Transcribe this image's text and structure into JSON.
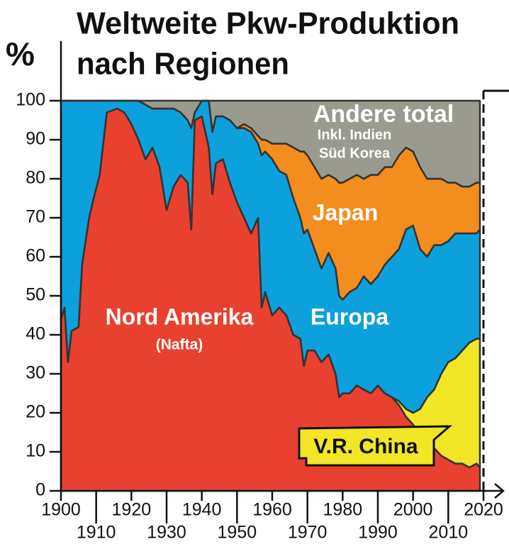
{
  "chart_data": {
    "type": "stacked_area",
    "title": [
      "Weltweite Pkw-Produktion",
      "nach Regionen"
    ],
    "y_label": "%",
    "x": [
      1900,
      1901,
      1902,
      1903,
      1905,
      1906,
      1908,
      1909,
      1911,
      1913,
      1916,
      1918,
      1920,
      1922,
      1924,
      1926,
      1928,
      1930,
      1932,
      1934,
      1936,
      1937,
      1938,
      1940,
      1942,
      1943,
      1944,
      1946,
      1948,
      1950,
      1952,
      1954,
      1956,
      1957,
      1958,
      1960,
      1962,
      1964,
      1966,
      1968,
      1969,
      1970,
      1972,
      1974,
      1976,
      1978,
      1979,
      1980,
      1982,
      1984,
      1986,
      1988,
      1990,
      1992,
      1994,
      1996,
      1998,
      2000,
      2002,
      2004,
      2006,
      2008,
      2010,
      2012,
      2014,
      2016,
      2018,
      2019
    ],
    "series": [
      {
        "name": "Nord Amerika",
        "color": "#e8412f",
        "values": [
          44,
          47,
          33,
          41,
          42,
          58,
          70,
          74,
          81,
          97,
          98,
          97,
          94,
          90,
          85,
          88,
          83,
          72,
          78,
          81,
          79,
          67,
          95,
          96,
          88,
          76,
          84,
          85,
          79,
          74,
          70,
          66,
          70,
          47,
          51,
          45,
          47,
          45,
          40,
          39,
          32,
          36,
          36,
          33,
          35,
          30,
          24,
          25,
          25,
          27,
          26,
          25,
          27,
          25,
          24,
          22,
          19,
          17,
          14,
          12,
          11,
          9,
          8,
          7,
          7,
          6,
          7,
          6
        ]
      },
      {
        "name": "V.R. China",
        "color": "#f2e627",
        "values": [
          0,
          0,
          0,
          0,
          0,
          0,
          0,
          0,
          0,
          0,
          0,
          0,
          0,
          0,
          0,
          0,
          0,
          0,
          0,
          0,
          0,
          0,
          0,
          0,
          0,
          0,
          0,
          0,
          0,
          0,
          0,
          0,
          0,
          0,
          0,
          0,
          0,
          0,
          0,
          0,
          0,
          0,
          0,
          0,
          0,
          0,
          0,
          0,
          0,
          0,
          0,
          0,
          0,
          0,
          0,
          1,
          2,
          3,
          7,
          12,
          15,
          21,
          25,
          27,
          29,
          32,
          32,
          33
        ]
      },
      {
        "name": "Europa",
        "color": "#0ca0dc",
        "values": [
          56,
          53,
          67,
          59,
          58,
          42,
          30,
          26,
          19,
          3,
          2,
          3,
          6,
          10,
          14,
          10,
          15,
          26,
          20,
          16,
          16,
          26,
          2,
          4,
          12,
          16,
          12,
          11,
          16,
          19,
          23,
          26,
          19,
          39,
          36,
          40,
          35,
          36,
          35,
          31,
          34,
          31,
          26,
          24,
          26,
          27,
          26,
          24,
          26,
          25,
          29,
          28,
          28,
          33,
          36,
          39,
          46,
          48,
          41,
          36,
          37,
          33,
          31,
          32,
          30,
          28,
          27,
          28
        ]
      },
      {
        "name": "Japan",
        "color": "#f28d1e",
        "values": [
          0,
          0,
          0,
          0,
          0,
          0,
          0,
          0,
          0,
          0,
          0,
          0,
          0,
          0,
          0,
          0,
          0,
          0,
          0,
          0,
          0,
          0,
          0,
          0,
          0,
          0,
          0,
          0,
          0,
          0,
          1,
          1,
          2,
          4,
          3,
          4,
          7,
          8,
          13,
          17,
          21,
          19,
          21,
          23,
          20,
          23,
          29,
          30,
          29,
          29,
          25,
          28,
          26,
          25,
          23,
          24,
          21,
          19,
          21,
          20,
          17,
          17,
          15,
          13,
          12,
          12,
          13,
          12
        ]
      },
      {
        "name": "Andere total",
        "color": "#9b9a8f",
        "values": [
          0,
          0,
          0,
          0,
          0,
          0,
          0,
          0,
          0,
          0,
          0,
          0,
          0,
          0,
          1,
          2,
          2,
          2,
          2,
          3,
          5,
          7,
          3,
          0,
          0,
          8,
          4,
          4,
          5,
          7,
          6,
          7,
          9,
          10,
          10,
          11,
          11,
          11,
          12,
          13,
          13,
          14,
          17,
          20,
          19,
          20,
          21,
          21,
          20,
          19,
          20,
          19,
          19,
          17,
          17,
          14,
          12,
          13,
          17,
          20,
          20,
          20,
          21,
          21,
          22,
          22,
          21,
          21
        ]
      }
    ],
    "annotations": [
      "(Nafta)",
      "Inkl. Indien",
      "Süd Korea"
    ],
    "xlim": [
      1900,
      2020
    ],
    "ylim": [
      0,
      100
    ],
    "xticks": [
      1900,
      1910,
      1920,
      1930,
      1940,
      1950,
      1960,
      1970,
      1980,
      1990,
      2000,
      2010,
      2020
    ],
    "yticks": [
      0,
      10,
      20,
      30,
      40,
      50,
      60,
      70,
      80,
      90,
      100
    ]
  }
}
